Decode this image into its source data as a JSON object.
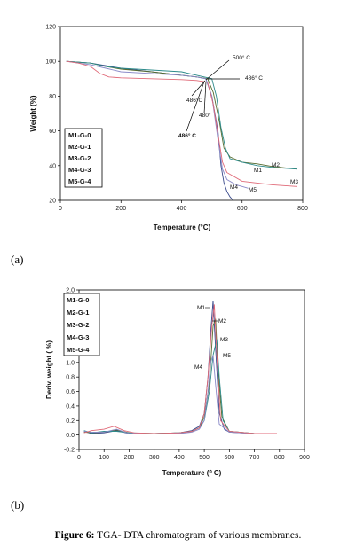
{
  "figure": {
    "caption_label": "Figure 6:",
    "caption_text": " TGA- DTA chromatogram of various membranes.",
    "panel_a_label": "(a)",
    "panel_b_label": "(b)"
  },
  "chart_data": [
    {
      "type": "line",
      "panel": "(a)",
      "xlabel": "Temperature (°C)",
      "ylabel": "Weight (%)",
      "xlim": [
        0,
        800
      ],
      "ylim": [
        20,
        120
      ],
      "xticks": [
        0,
        200,
        400,
        600,
        800
      ],
      "yticks": [
        20,
        40,
        60,
        80,
        100,
        120
      ],
      "grid": false,
      "legend_position": "bottom-left",
      "legend": [
        "M1-G-0",
        "M2-G-1",
        "M3-G-2",
        "M4-G-3",
        "M5-G-4"
      ],
      "series": [
        {
          "name": "M1-G-0",
          "color": "#3a4a8c",
          "x": [
            20,
            60,
            100,
            150,
            200,
            300,
            400,
            450,
            480,
            500,
            520,
            530,
            540,
            550,
            560,
            570
          ],
          "y": [
            100,
            99.5,
            99,
            97.5,
            96,
            94,
            92,
            91,
            90,
            80,
            60,
            40,
            30,
            25,
            22,
            20
          ]
        },
        {
          "name": "M2-G-1",
          "color": "#556b2f",
          "x": [
            20,
            60,
            100,
            150,
            200,
            300,
            400,
            450,
            486,
            505,
            525,
            540,
            560,
            600,
            650,
            700,
            780
          ],
          "y": [
            100,
            99.5,
            99,
            97,
            95.5,
            94,
            92,
            91,
            90,
            82,
            65,
            50,
            45,
            42,
            41,
            39.5,
            38
          ]
        },
        {
          "name": "M3-G-2",
          "color": "#2e8b8b",
          "x": [
            20,
            60,
            100,
            150,
            200,
            300,
            400,
            450,
            500,
            515,
            530,
            545,
            560,
            600,
            650,
            700,
            780
          ],
          "y": [
            100,
            99.5,
            99,
            97,
            96,
            95,
            94,
            92,
            90,
            80,
            62,
            50,
            44,
            42,
            40,
            39,
            38
          ]
        },
        {
          "name": "M4-G-3",
          "color": "#8a8ac8",
          "x": [
            20,
            60,
            100,
            150,
            200,
            300,
            400,
            450,
            480,
            500,
            520,
            535,
            550,
            580,
            600,
            620
          ],
          "y": [
            100,
            99,
            98,
            96,
            94,
            93,
            92,
            91,
            90,
            80,
            55,
            38,
            32,
            29,
            28,
            27
          ]
        },
        {
          "name": "M5-G-4",
          "color": "#e06a78",
          "x": [
            20,
            60,
            100,
            130,
            160,
            200,
            300,
            400,
            450,
            486,
            505,
            520,
            535,
            550,
            600,
            700,
            780
          ],
          "y": [
            100,
            99,
            97,
            93,
            91,
            90.5,
            90,
            89.5,
            89,
            88,
            75,
            58,
            42,
            36,
            31,
            29,
            28
          ]
        }
      ],
      "annotations": [
        "500° C",
        "486° C",
        "486°C",
        "480°",
        "486° C"
      ],
      "end_labels": [
        "M2",
        "M1",
        "M3",
        "M4",
        "M5"
      ]
    },
    {
      "type": "line",
      "panel": "(b)",
      "xlabel": "Temperature (⁰ C)",
      "ylabel": "Deriv. weight ( %)",
      "xlim": [
        0,
        900
      ],
      "ylim": [
        -0.2,
        2.0
      ],
      "xticks": [
        0,
        100,
        200,
        300,
        400,
        500,
        600,
        700,
        800,
        900
      ],
      "yticks": [
        -0.2,
        0.0,
        0.2,
        0.4,
        0.6,
        0.8,
        1.0,
        1.2,
        1.4,
        1.6,
        1.8,
        2.0
      ],
      "grid": false,
      "legend_position": "top-left",
      "legend": [
        "M1-G-0",
        "M2-G-1",
        "M3-G-2",
        "M4-G-3",
        "M5-G-4"
      ],
      "series": [
        {
          "name": "M1-G-0",
          "color": "#3a4a8c",
          "x": [
            20,
            50,
            100,
            150,
            200,
            300,
            400,
            450,
            480,
            500,
            515,
            525,
            535,
            545,
            560,
            580,
            600,
            700,
            790
          ],
          "y": [
            0.05,
            0.02,
            0.03,
            0.06,
            0.02,
            0.02,
            0.03,
            0.06,
            0.12,
            0.3,
            0.8,
            1.4,
            1.85,
            1.2,
            0.3,
            0.08,
            0.04,
            0.02,
            0.02
          ]
        },
        {
          "name": "M2-G-1",
          "color": "#556b2f",
          "x": [
            20,
            50,
            100,
            150,
            200,
            300,
            400,
            450,
            480,
            500,
            520,
            535,
            545,
            555,
            570,
            600,
            700,
            790
          ],
          "y": [
            0.04,
            0.03,
            0.04,
            0.07,
            0.03,
            0.02,
            0.03,
            0.05,
            0.1,
            0.25,
            0.7,
            1.5,
            1.6,
            0.9,
            0.25,
            0.05,
            0.02,
            0.02
          ]
        },
        {
          "name": "M3-G-2",
          "color": "#2e8b8b",
          "x": [
            20,
            50,
            100,
            150,
            200,
            300,
            400,
            450,
            480,
            500,
            520,
            535,
            550,
            560,
            575,
            600,
            700,
            790
          ],
          "y": [
            0.06,
            0.03,
            0.05,
            0.05,
            0.03,
            0.02,
            0.03,
            0.05,
            0.1,
            0.2,
            0.6,
            1.1,
            1.32,
            0.8,
            0.2,
            0.05,
            0.02,
            0.02
          ]
        },
        {
          "name": "M4-G-3",
          "color": "#8a8ac8",
          "x": [
            20,
            50,
            100,
            150,
            200,
            300,
            400,
            450,
            480,
            500,
            515,
            525,
            535,
            545,
            560,
            600,
            700,
            790
          ],
          "y": [
            0.05,
            0.04,
            0.04,
            0.08,
            0.02,
            0.02,
            0.02,
            0.04,
            0.08,
            0.2,
            0.6,
            1.0,
            1.1,
            0.7,
            0.15,
            0.04,
            0.02,
            0.02
          ]
        },
        {
          "name": "M5-G-4",
          "color": "#e06a78",
          "x": [
            20,
            50,
            100,
            140,
            180,
            220,
            300,
            400,
            450,
            480,
            500,
            515,
            530,
            540,
            550,
            565,
            600,
            700,
            790
          ],
          "y": [
            0.03,
            0.06,
            0.08,
            0.12,
            0.06,
            0.03,
            0.02,
            0.03,
            0.05,
            0.1,
            0.3,
            0.8,
            1.5,
            1.8,
            1.1,
            0.2,
            0.05,
            0.02,
            0.02
          ]
        }
      ],
      "peak_labels": [
        "M1",
        "M2",
        "M3",
        "M5",
        "M4"
      ]
    }
  ]
}
